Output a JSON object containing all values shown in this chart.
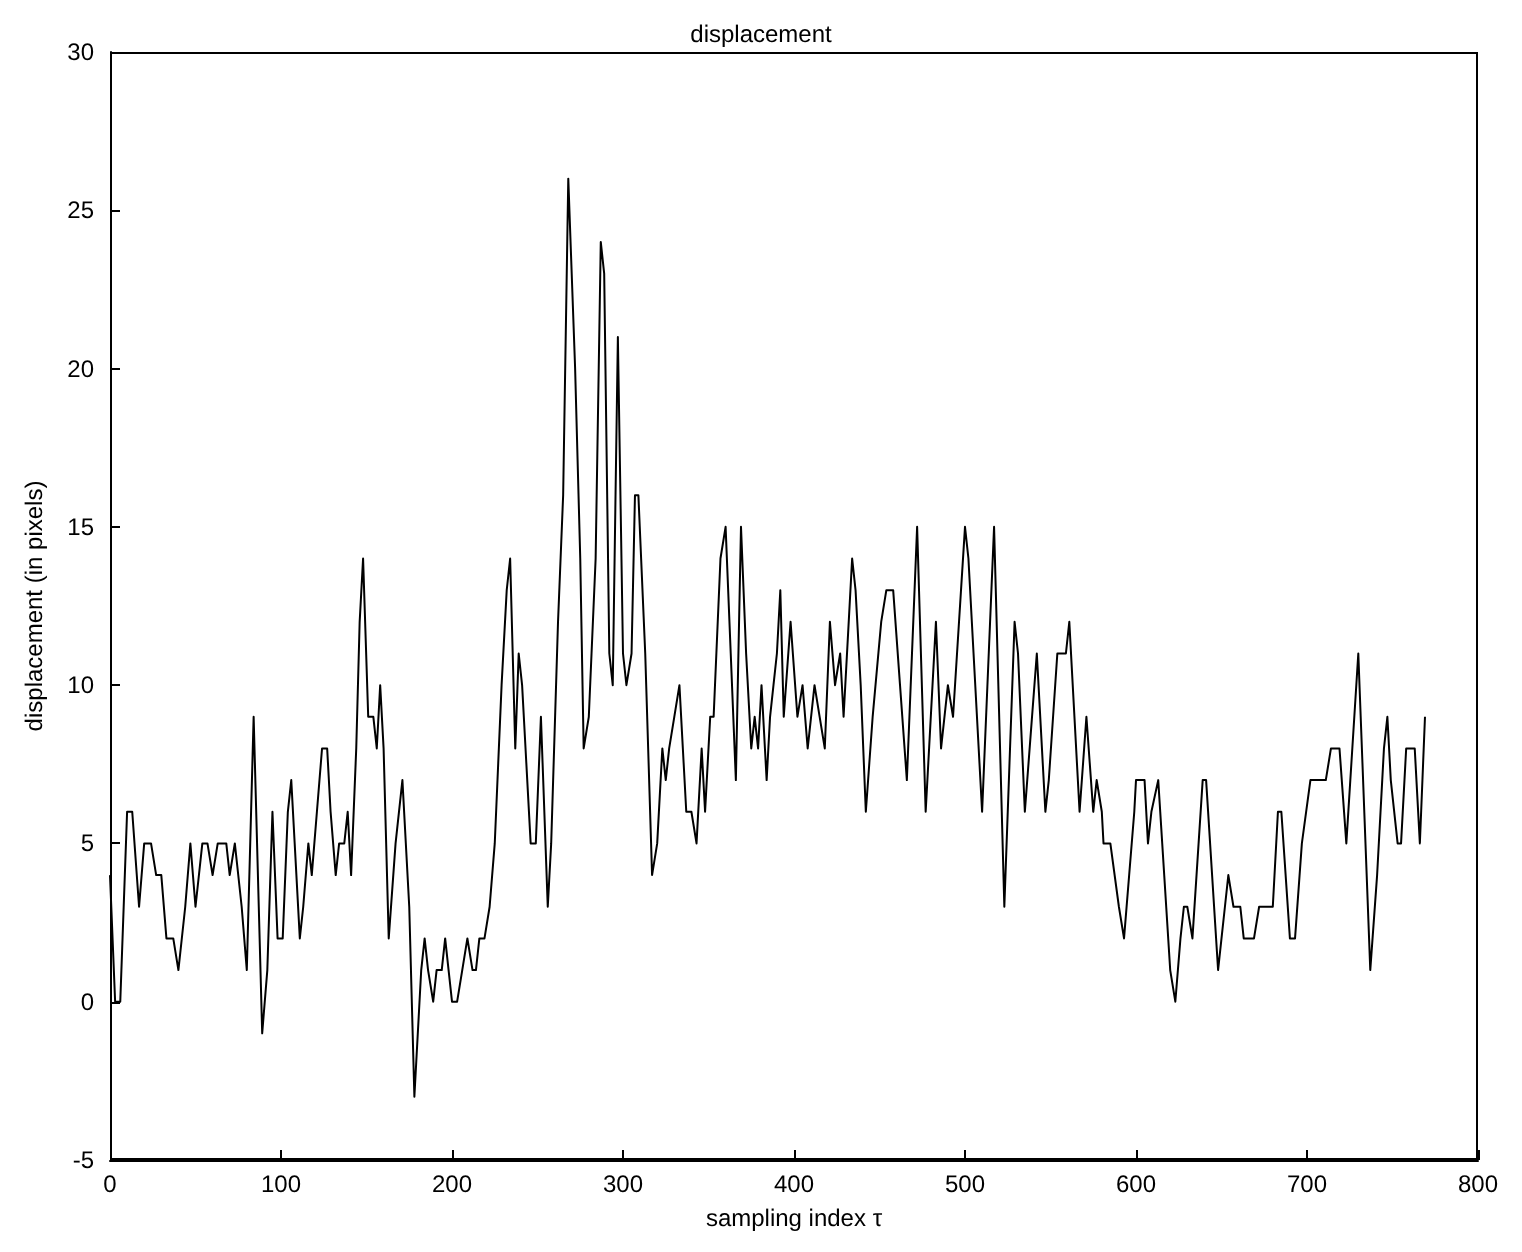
{
  "chart_data": {
    "type": "line",
    "title": "displacement",
    "xlabel": "sampling index τ",
    "ylabel": "displacement (in pixels)",
    "xlim": [
      0,
      800
    ],
    "xticks": [
      0,
      100,
      200,
      300,
      400,
      500,
      600,
      700,
      800
    ],
    "ylim": [
      -5,
      30
    ],
    "yticks": [
      -5,
      0,
      5,
      10,
      15,
      20,
      25,
      30
    ],
    "grid": false,
    "marker": "none",
    "line_style": "solid",
    "series": [
      {
        "color": "#000000",
        "x": [
          0,
          3,
          6,
          10,
          13,
          17,
          20,
          24,
          27,
          30,
          33,
          37,
          40,
          44,
          47,
          50,
          54,
          57,
          60,
          63,
          68,
          70,
          73,
          77,
          80,
          84,
          87,
          89,
          92,
          95,
          98,
          101,
          104,
          106,
          108,
          111,
          113,
          116,
          118,
          121,
          124,
          127,
          129,
          132,
          134,
          137,
          139,
          141,
          144,
          146,
          148,
          151,
          154,
          156,
          158,
          160,
          163,
          167,
          171,
          175,
          178,
          182,
          184,
          186,
          189,
          191,
          194,
          196,
          198,
          200,
          203,
          206,
          209,
          212,
          214,
          216,
          219,
          222,
          225,
          229,
          232,
          234,
          237,
          239,
          241,
          243,
          246,
          249,
          252,
          256,
          258,
          262,
          265,
          268,
          272,
          275,
          277,
          280,
          284,
          287,
          289,
          292,
          294,
          297,
          300,
          302,
          305,
          307,
          309,
          313,
          317,
          320,
          323,
          325,
          327,
          330,
          333,
          335,
          337,
          340,
          343,
          346,
          348,
          351,
          353,
          357,
          360,
          363,
          366,
          369,
          372,
          375,
          377,
          379,
          381,
          384,
          386,
          388,
          390,
          392,
          394,
          398,
          402,
          405,
          408,
          412,
          415,
          418,
          421,
          424,
          427,
          429,
          432,
          434,
          436,
          439,
          442,
          446,
          451,
          454,
          458,
          462,
          466,
          472,
          477,
          483,
          486,
          490,
          493,
          500,
          502,
          510,
          517,
          523,
          529,
          531,
          535,
          542,
          547,
          549,
          554,
          559,
          561,
          567,
          571,
          575,
          577,
          580,
          581,
          585,
          590,
          593,
          599,
          600,
          605,
          607,
          609,
          613,
          620,
          623,
          626,
          628,
          630,
          633,
          639,
          641,
          648,
          650,
          652,
          654,
          657,
          661,
          663,
          669,
          672,
          680,
          683,
          685,
          690,
          693,
          697,
          702,
          711,
          714,
          719,
          723,
          730,
          737,
          741,
          745,
          747,
          749,
          753,
          755,
          758,
          763,
          766,
          769
        ],
        "values": [
          4,
          0,
          0,
          6,
          6,
          3,
          5,
          5,
          4,
          4,
          2,
          2,
          1,
          3,
          5,
          3,
          5,
          5,
          4,
          5,
          5,
          4,
          5,
          3,
          1,
          9,
          3,
          -1,
          1,
          6,
          2,
          2,
          6,
          7,
          5,
          2,
          3,
          5,
          4,
          6,
          8,
          8,
          6,
          4,
          5,
          5,
          6,
          4,
          8,
          12,
          14,
          9,
          9,
          8,
          10,
          8,
          2,
          5,
          7,
          3,
          -3,
          1,
          2,
          1,
          0,
          1,
          1,
          2,
          1,
          0,
          0,
          1,
          2,
          1,
          1,
          2,
          2,
          3,
          5,
          10,
          13,
          14,
          8,
          11,
          10,
          8,
          5,
          5,
          9,
          3,
          5,
          12,
          16,
          26,
          20,
          14,
          8,
          9,
          14,
          24,
          23,
          11,
          10,
          21,
          11,
          10,
          11,
          16,
          16,
          11,
          4,
          5,
          8,
          7,
          8,
          9,
          10,
          8,
          6,
          6,
          5,
          8,
          6,
          9,
          9,
          14,
          15,
          11,
          7,
          15,
          11,
          8,
          9,
          8,
          10,
          7,
          9,
          10,
          11,
          13,
          9,
          12,
          9,
          10,
          8,
          10,
          9,
          8,
          12,
          10,
          11,
          9,
          12,
          14,
          13,
          10,
          6,
          9,
          12,
          13,
          13,
          10,
          7,
          15,
          6,
          12,
          8,
          10,
          9,
          15,
          14,
          6,
          15,
          3,
          12,
          11,
          6,
          11,
          6,
          7,
          11,
          11,
          12,
          6,
          9,
          6,
          7,
          6,
          5,
          5,
          3,
          2,
          6,
          7,
          7,
          5,
          6,
          7,
          1,
          0,
          2,
          3,
          3,
          2,
          7,
          7,
          1,
          2,
          3,
          4,
          3,
          3,
          2,
          2,
          3,
          3,
          6,
          6,
          2,
          2,
          5,
          7,
          7,
          8,
          8,
          5,
          11,
          1,
          4,
          8,
          9,
          7,
          5,
          5,
          8,
          8,
          5,
          9
        ]
      }
    ]
  }
}
